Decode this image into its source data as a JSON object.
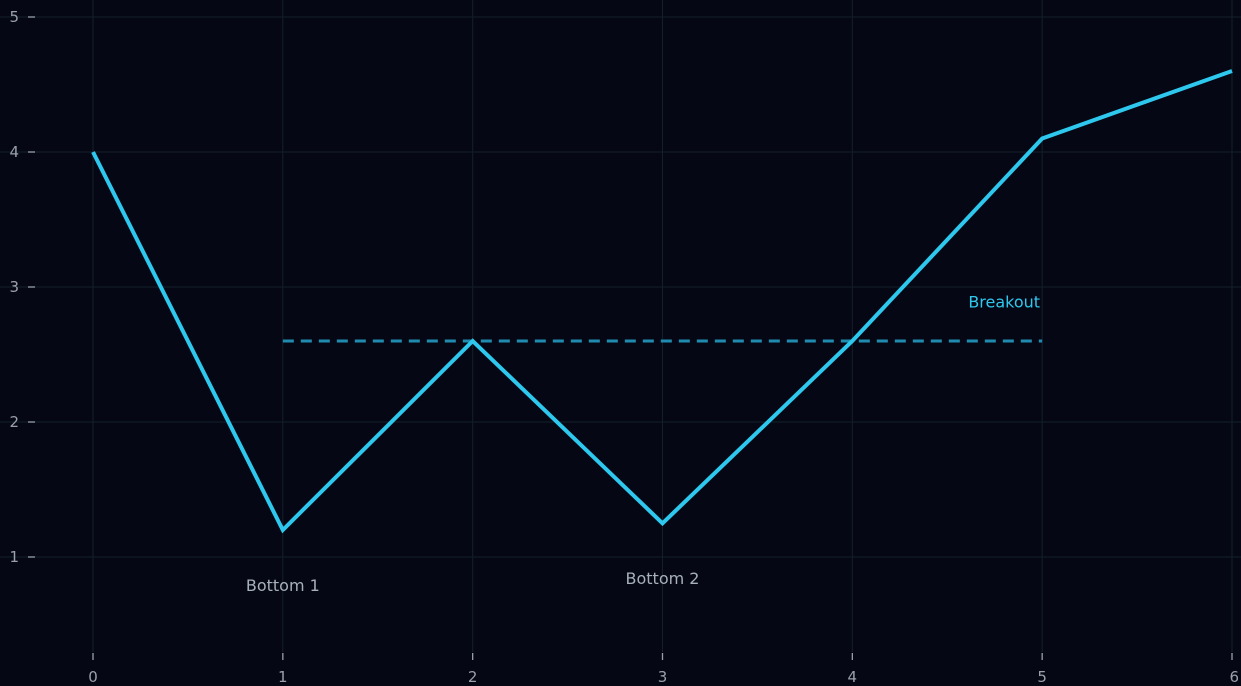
{
  "chart_data": {
    "type": "line",
    "title": "",
    "xlabel": "",
    "ylabel": "",
    "xlim": [
      0,
      6
    ],
    "ylim": [
      0.2,
      5
    ],
    "x_ticks": [
      0,
      1,
      2,
      3,
      4,
      5,
      6
    ],
    "y_ticks": [
      1,
      2,
      3,
      4,
      5
    ],
    "grid": true,
    "series": [
      {
        "x": [
          0,
          1,
          2,
          3,
          4,
          5,
          6
        ],
        "y": [
          4.0,
          1.2,
          2.6,
          1.25,
          2.6,
          4.1,
          4.6
        ],
        "color": "#2ec8ee",
        "style": "solid"
      }
    ],
    "reference_lines": [
      {
        "x_start": 1,
        "x_end": 5,
        "y": 2.6,
        "color": "#1f8bb0",
        "style": "dashed"
      }
    ],
    "annotations": [
      {
        "text": "Bottom 1",
        "x": 1,
        "y": 0.75,
        "color": "#a7b0bc"
      },
      {
        "text": "Bottom 2",
        "x": 3,
        "y": 0.8,
        "color": "#a7b0bc"
      },
      {
        "text": "Breakout",
        "x": 4.8,
        "y": 2.85,
        "color": "#2ec8ee"
      }
    ],
    "colors": {
      "background": "#050814",
      "grid": "#131f2c",
      "tick_label": "#9aa0ab"
    }
  }
}
